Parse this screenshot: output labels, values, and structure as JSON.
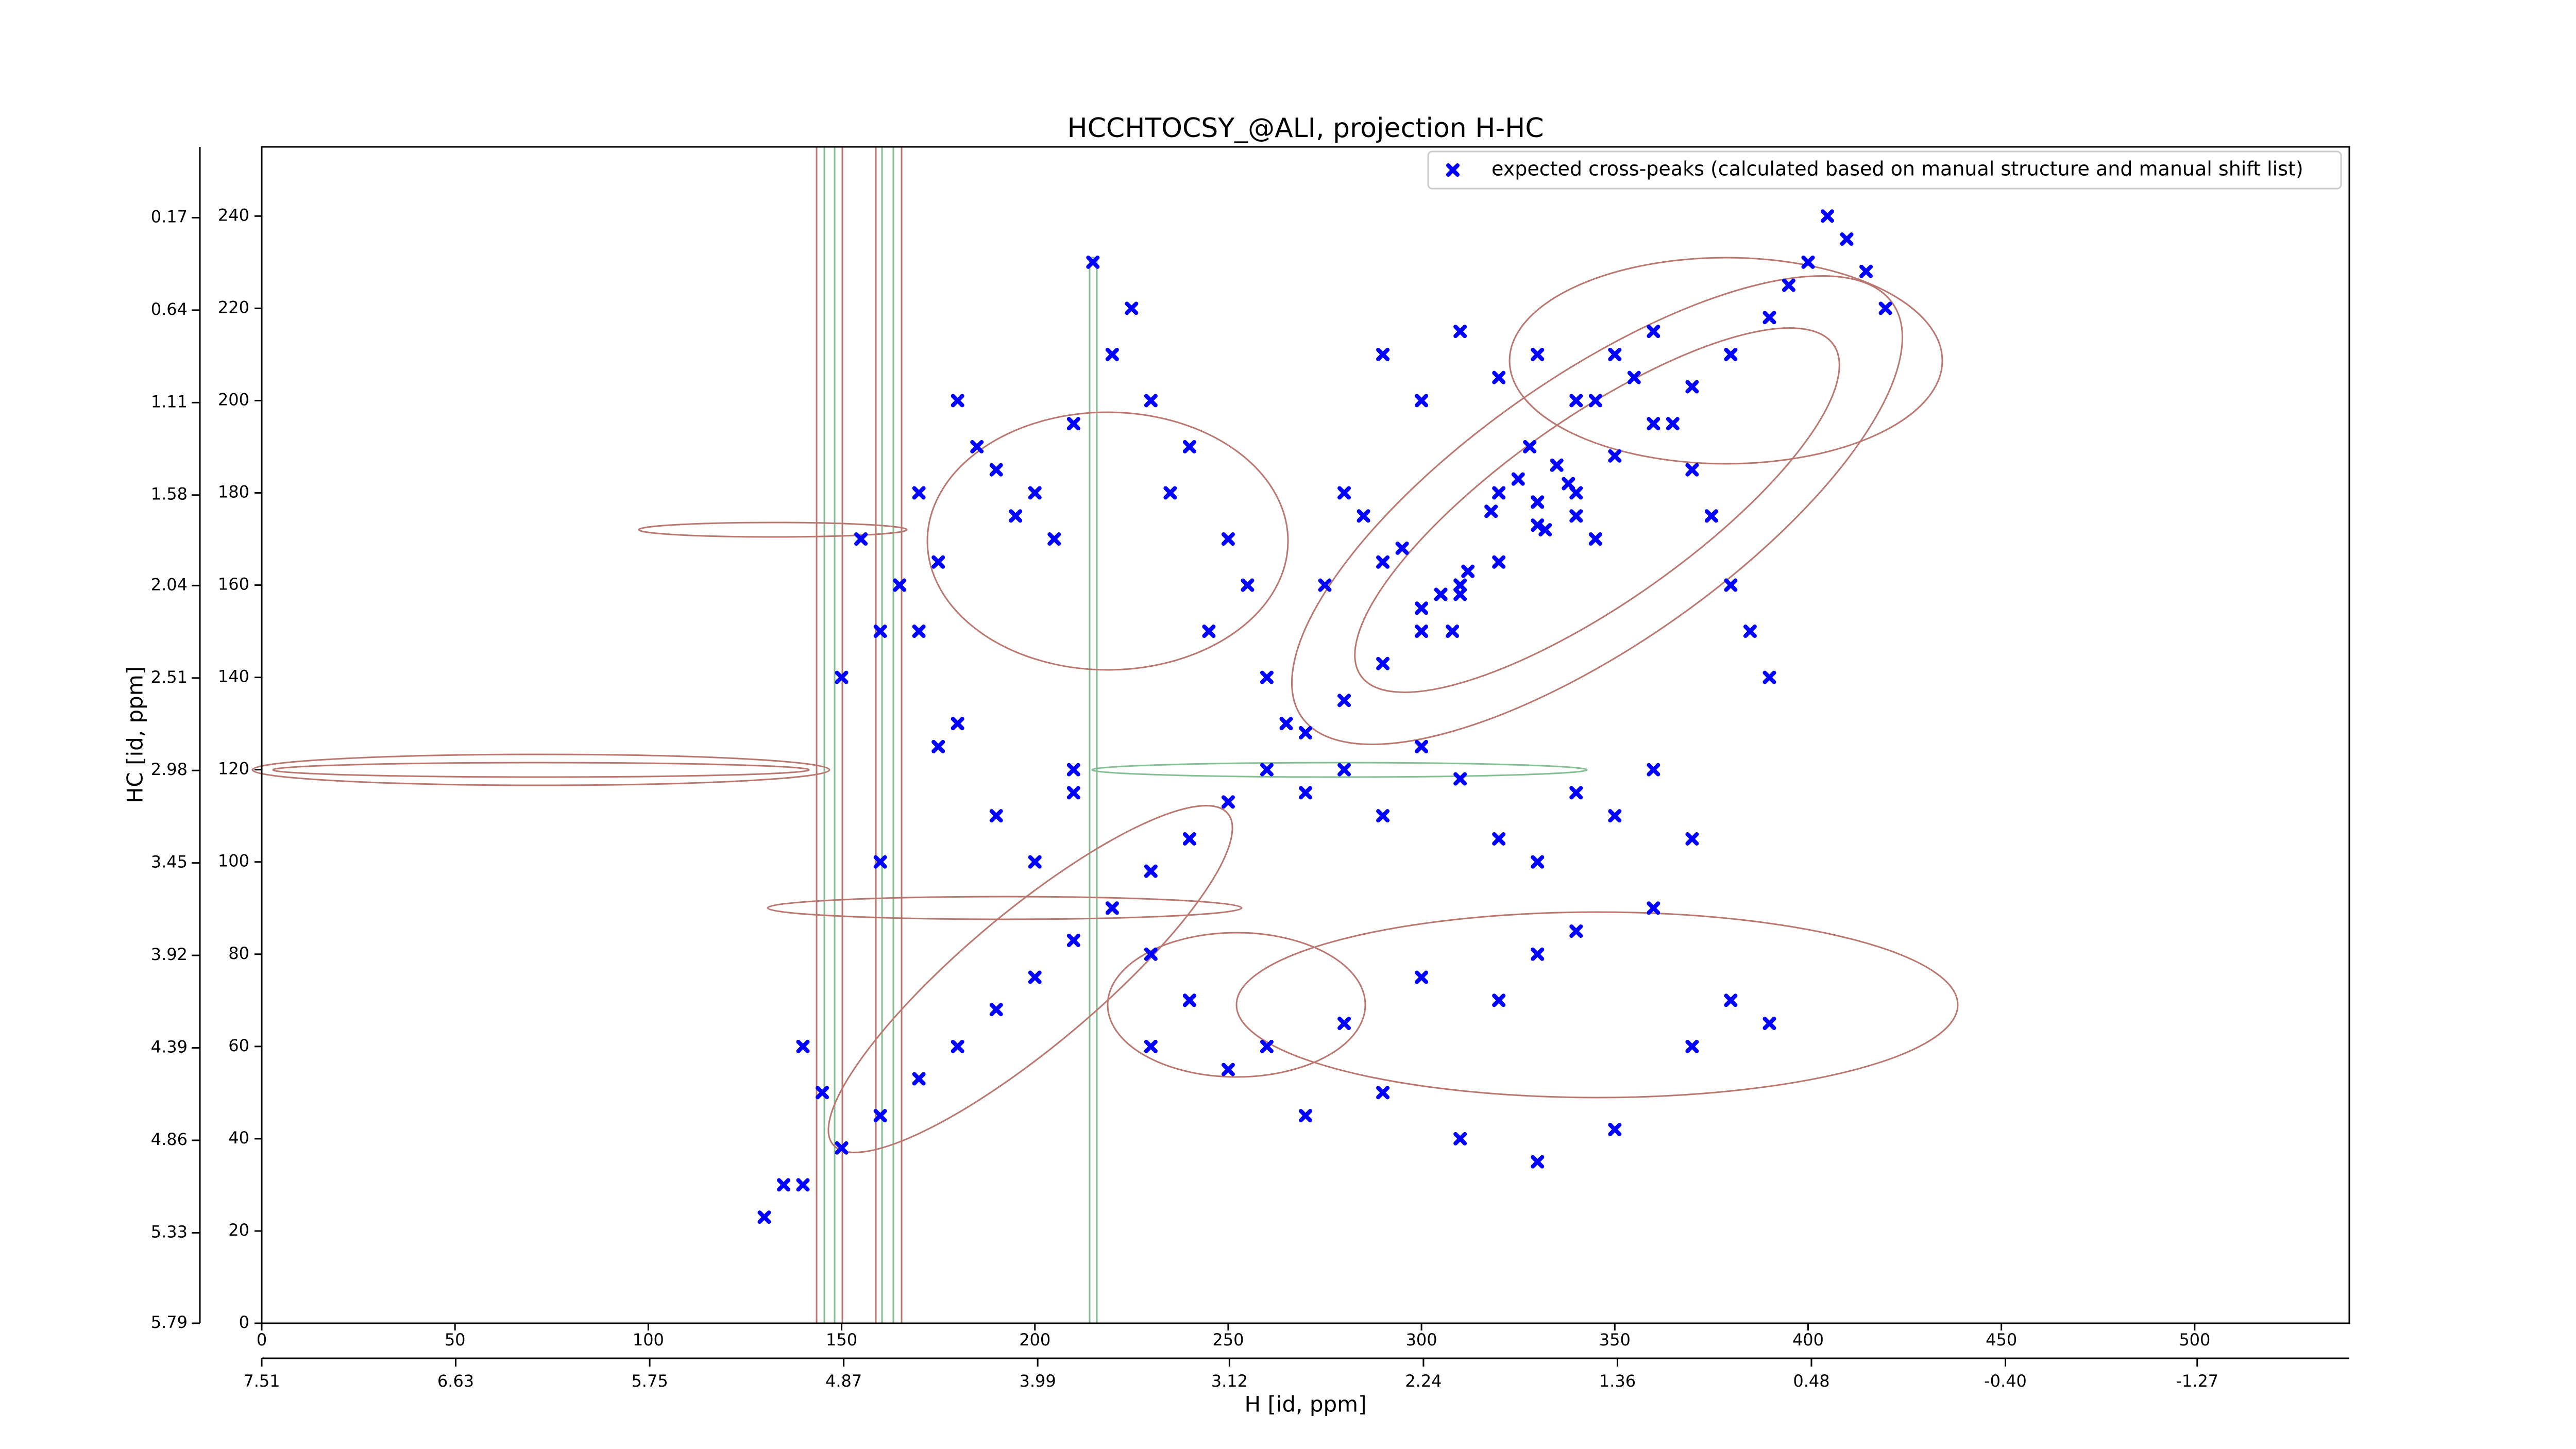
{
  "chart_data": {
    "type": "scatter",
    "title": "HCCHTOCSY_@ALI, projection H-HC",
    "xlabel": "H [id, ppm]",
    "ylabel": "HC [id, ppm]",
    "xlim": [
      0,
      540
    ],
    "ylim": [
      0,
      255
    ],
    "xticks": [
      0,
      50,
      100,
      150,
      200,
      250,
      300,
      350,
      400,
      450,
      500
    ],
    "yticks": [
      0,
      20,
      40,
      60,
      80,
      100,
      120,
      140,
      160,
      180,
      200,
      220,
      240
    ],
    "x2lim": [
      7.51,
      -1.96
    ],
    "x2ticks": [
      7.51,
      6.63,
      5.75,
      4.87,
      3.99,
      3.12,
      2.24,
      1.36,
      0.48,
      {
        "value": -0.4,
        "label": "-0.40"
      },
      -1.27
    ],
    "y2lim": [
      5.79,
      -0.19
    ],
    "y2ticks": [
      5.79,
      5.33,
      4.86,
      4.39,
      3.92,
      3.45,
      2.98,
      2.51,
      2.04,
      1.58,
      1.11,
      0.64,
      0.17
    ],
    "legend": "upper right",
    "series": [
      {
        "name": "expected cross-peaks (calculated based on manual structure and manual shift list)",
        "color": "#0000ff",
        "x": [
          130,
          140,
          150,
          160,
          170,
          180,
          190,
          200,
          210,
          220,
          230,
          240,
          250,
          260,
          270,
          280,
          290,
          300,
          310,
          320,
          330,
          340,
          350,
          360,
          370,
          380,
          390,
          320,
          325,
          330,
          335,
          340,
          328,
          332,
          338,
          318,
          345,
          310,
          305,
          312,
          300,
          295,
          308,
          285,
          290,
          280,
          275,
          350,
          355,
          360,
          345,
          365,
          370,
          375,
          380,
          300,
          290,
          310,
          320,
          330,
          340,
          395,
          400,
          405,
          410,
          415,
          420,
          385,
          390,
          180,
          185,
          190,
          200,
          205,
          210,
          195,
          175,
          170,
          165,
          160,
          155,
          150,
          215,
          220,
          225,
          230,
          240,
          235,
          250,
          245,
          255,
          260,
          265,
          270,
          280,
          290,
          300,
          310,
          320,
          330,
          340,
          350,
          360,
          370,
          300,
          320,
          330,
          280,
          260,
          230,
          240,
          250,
          270,
          290,
          310,
          330,
          350,
          370,
          380,
          390,
          360,
          340,
          200,
          210,
          190,
          180,
          170,
          160,
          220,
          230,
          240,
          145,
          140,
          135,
          210,
          175
        ],
        "y": [
          23,
          30,
          38,
          45,
          53,
          60,
          68,
          75,
          83,
          90,
          98,
          105,
          113,
          120,
          128,
          135,
          143,
          150,
          158,
          165,
          173,
          180,
          188,
          195,
          203,
          210,
          218,
          180,
          183,
          178,
          186,
          175,
          190,
          172,
          182,
          176,
          170,
          160,
          158,
          163,
          155,
          168,
          150,
          175,
          165,
          180,
          160,
          210,
          205,
          215,
          200,
          195,
          185,
          175,
          160,
          200,
          210,
          215,
          205,
          210,
          200,
          225,
          230,
          240,
          235,
          228,
          220,
          150,
          140,
          200,
          190,
          185,
          180,
          170,
          195,
          175,
          165,
          180,
          160,
          150,
          170,
          140,
          230,
          210,
          220,
          200,
          190,
          180,
          170,
          150,
          160,
          140,
          130,
          115,
          120,
          110,
          125,
          118,
          105,
          100,
          115,
          110,
          120,
          105,
          75,
          70,
          80,
          65,
          60,
          60,
          70,
          55,
          45,
          50,
          40,
          35,
          42,
          60,
          70,
          65,
          90,
          85,
          100,
          120,
          110,
          130,
          150,
          100,
          90,
          80,
          70,
          50,
          60,
          30,
          115,
          125
        ]
      }
    ]
  }
}
